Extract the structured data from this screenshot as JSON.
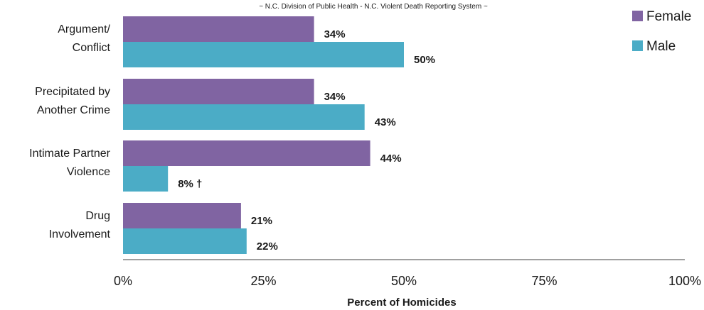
{
  "source_note": "~ N.C. Division of Public Health - N.C. Violent Death Reporting System ~",
  "chart_data": {
    "type": "bar",
    "orientation": "horizontal",
    "categories": [
      [
        "Argument/",
        "Conflict"
      ],
      [
        "Precipitated by",
        "Another Crime"
      ],
      [
        "Intimate Partner",
        "Violence"
      ],
      [
        "Drug",
        "Involvement"
      ]
    ],
    "series": [
      {
        "name": "Female",
        "color": "#8064a2",
        "values": [
          34,
          34,
          44,
          21
        ],
        "labels": [
          "34%",
          "34%",
          "44%",
          "21%"
        ]
      },
      {
        "name": "Male",
        "color": "#4bacc6",
        "values": [
          50,
          43,
          8,
          22
        ],
        "labels": [
          "50%",
          "43%",
          "8%  †",
          "22%"
        ]
      }
    ],
    "xlabel": "Percent of Homicides",
    "xlim": [
      0,
      100
    ],
    "xticks": [
      0,
      25,
      50,
      75,
      100
    ],
    "xtick_labels": [
      "0%",
      "25%",
      "50%",
      "75%",
      "100%"
    ],
    "grid": false,
    "legend_position": "top-right"
  }
}
